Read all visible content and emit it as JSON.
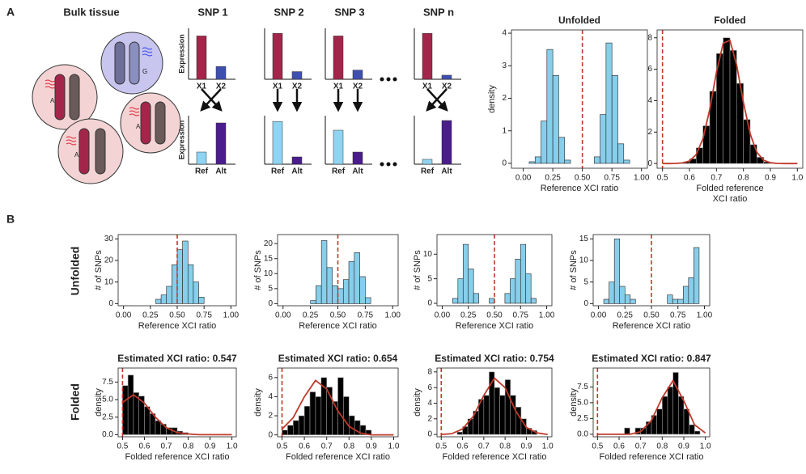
{
  "panel_a": {
    "label": "A"
  },
  "panel_b": {
    "label": "B",
    "row_labels": [
      "Unfolded",
      "Folded"
    ]
  },
  "bulk_tissue": {
    "title": "Bulk tissue",
    "alleles": [
      "A",
      "A",
      "A",
      "G"
    ]
  },
  "snp_panels": {
    "ylabel": "Expression",
    "ylim": [
      0,
      100
    ],
    "top_colors": [
      "#a3264a",
      "#3f4fb0"
    ],
    "bottom_colors": [
      "#8fd4f2",
      "#4a1c8c"
    ],
    "panels": [
      {
        "title": "SNP 1",
        "top": {
          "categories": [
            "X1",
            "X2"
          ],
          "values": [
            85,
            25
          ]
        },
        "bottom": {
          "categories": [
            "Ref",
            "Alt"
          ],
          "values": [
            25,
            85
          ]
        }
      },
      {
        "title": "SNP 2",
        "top": {
          "categories": [
            "X1",
            "X2"
          ],
          "values": [
            90,
            15
          ]
        },
        "bottom": {
          "categories": [
            "Ref",
            "Alt"
          ],
          "values": [
            88,
            15
          ]
        }
      },
      {
        "title": "SNP 3",
        "top": {
          "categories": [
            "X1",
            "X2"
          ],
          "values": [
            85,
            18
          ]
        },
        "bottom": {
          "categories": [
            "Ref",
            "Alt"
          ],
          "values": [
            70,
            25
          ]
        }
      },
      {
        "title": "SNP n",
        "top": {
          "categories": [
            "X1",
            "X2"
          ],
          "values": [
            90,
            8
          ]
        },
        "bottom": {
          "categories": [
            "Ref",
            "Alt"
          ],
          "values": [
            10,
            90
          ]
        }
      }
    ]
  },
  "chart_data": [
    {
      "type": "histogram",
      "title": "Unfolded",
      "xlabel": "Reference XCI ratio",
      "ylabel": "density",
      "bins": [
        0,
        0.05,
        0.1,
        0.15,
        0.2,
        0.25,
        0.3,
        0.35,
        0.4,
        0.45,
        0.5,
        0.55,
        0.6,
        0.65,
        0.7,
        0.75,
        0.8,
        0.85,
        0.9,
        0.95,
        1
      ],
      "counts": [
        0,
        0.05,
        0.2,
        1.3,
        3.5,
        2.7,
        0.8,
        0.1,
        0,
        0,
        0,
        0,
        0.2,
        1.5,
        3.7,
        2.7,
        0.6,
        0.1,
        0,
        0
      ],
      "color": "#87ceeb",
      "edgecolor": "#222",
      "reference_line": 0.5,
      "reference_color": "#c0392b",
      "xlim": [
        -0.1,
        1.05
      ],
      "ylim": [
        -0.15,
        4.1
      ],
      "xticks": [
        {
          "value": 0,
          "label": "0.00"
        },
        0.25,
        {
          "value": 0.5,
          "label": "0.50"
        },
        0.75,
        {
          "value": 1,
          "label": "1.00"
        }
      ],
      "yticks": [
        0,
        1,
        2,
        3,
        4
      ]
    },
    {
      "type": "histogram",
      "title": "Folded",
      "xlabel": [
        "Folded reference",
        "XCI ratio"
      ],
      "bins": [
        0.5,
        0.525,
        0.55,
        0.575,
        0.6,
        0.625,
        0.65,
        0.675,
        0.7,
        0.725,
        0.75,
        0.775,
        0.8,
        0.825,
        0.85,
        0.875,
        0.9,
        0.925,
        0.95,
        0.975,
        1
      ],
      "counts": [
        0,
        0,
        0,
        0.1,
        0.3,
        1.0,
        2.4,
        4.6,
        7.0,
        8.0,
        7.2,
        5.1,
        2.8,
        1.2,
        0.4,
        0.1,
        0,
        0,
        0,
        0
      ],
      "color": "#000",
      "edgecolor": "#999",
      "reference_line": 0.5,
      "reference_color": "#c0392b",
      "curve": {
        "x": [
          0.5,
          0.525,
          0.55,
          0.575,
          0.6,
          0.625,
          0.65,
          0.675,
          0.7,
          0.725,
          0.75,
          0.775,
          0.8,
          0.825,
          0.85,
          0.875,
          0.9,
          0.925,
          0.95,
          0.975,
          1
        ],
        "values": [
          0,
          0,
          0.01,
          0.04,
          0.16,
          0.57,
          1.58,
          3.43,
          5.81,
          7.65,
          7.84,
          6.26,
          3.89,
          1.89,
          0.71,
          0.21,
          0.05,
          0.01,
          0,
          0,
          0
        ],
        "color": "#c0392b"
      },
      "xlim": [
        0.48,
        1.02
      ],
      "ylim": [
        -0.3,
        8.5
      ],
      "xticks": [
        0.5,
        0.6,
        0.7,
        0.8,
        0.9,
        {
          "value": 1,
          "label": "1.0"
        }
      ],
      "yticks": [
        0,
        2,
        4,
        6,
        8
      ]
    },
    {
      "type": "histogram",
      "xlabel": "Reference XCI ratio",
      "ylabel": "# of SNPs",
      "bins": [
        0,
        0.05,
        0.1,
        0.15,
        0.2,
        0.25,
        0.3,
        0.35,
        0.4,
        0.45,
        0.5,
        0.55,
        0.6,
        0.65,
        0.7,
        0.75,
        0.8,
        0.85,
        0.9,
        0.95,
        1
      ],
      "counts": [
        0,
        0,
        0,
        0,
        0,
        0,
        2,
        4,
        8,
        18,
        25,
        29,
        18,
        10,
        3,
        0,
        0,
        0,
        0,
        0
      ],
      "color": "#87ceeb",
      "edgecolor": "#222",
      "reference_line": 0.5,
      "reference_color": "#c0392b",
      "xlim": [
        -0.05,
        1.05
      ],
      "ylim": [
        -1,
        32
      ],
      "xticks": [
        {
          "value": 0,
          "label": "0.00"
        },
        0.25,
        {
          "value": 0.5,
          "label": "0.50"
        },
        0.75,
        {
          "value": 1,
          "label": "1.00"
        }
      ],
      "yticks": [
        0,
        10,
        20,
        30
      ]
    },
    {
      "type": "histogram",
      "xlabel": "Reference XCI ratio",
      "ylabel": "# of SNPs",
      "bins": [
        0,
        0.05,
        0.1,
        0.15,
        0.2,
        0.25,
        0.3,
        0.35,
        0.4,
        0.45,
        0.5,
        0.55,
        0.6,
        0.65,
        0.7,
        0.75,
        0.8,
        0.85,
        0.9,
        0.95,
        1
      ],
      "counts": [
        0,
        0,
        0,
        0,
        0,
        1,
        6,
        21,
        12,
        6,
        5,
        8,
        14,
        17,
        9,
        2,
        0,
        0,
        0,
        0
      ],
      "color": "#87ceeb",
      "edgecolor": "#222",
      "reference_line": 0.5,
      "reference_color": "#c0392b",
      "xlim": [
        -0.05,
        1.05
      ],
      "ylim": [
        -0.7,
        23
      ],
      "xticks": [
        {
          "value": 0,
          "label": "0.00"
        },
        0.25,
        {
          "value": 0.5,
          "label": "0.50"
        },
        0.75,
        {
          "value": 1,
          "label": "1.00"
        }
      ],
      "yticks": [
        0,
        5,
        10,
        15,
        20
      ]
    },
    {
      "type": "histogram",
      "xlabel": "Reference XCI ratio",
      "ylabel": "# of SNPs",
      "bins": [
        0,
        0.05,
        0.1,
        0.15,
        0.2,
        0.25,
        0.3,
        0.35,
        0.4,
        0.45,
        0.5,
        0.55,
        0.6,
        0.65,
        0.7,
        0.75,
        0.8,
        0.85,
        0.9,
        0.95,
        1
      ],
      "counts": [
        0,
        0,
        1,
        5,
        12,
        7,
        2,
        0,
        0,
        1,
        0,
        0,
        2,
        5,
        9,
        12,
        6,
        1,
        0,
        0
      ],
      "color": "#87ceeb",
      "edgecolor": "#222",
      "reference_line": 0.5,
      "reference_color": "#c0392b",
      "xlim": [
        -0.05,
        1.05
      ],
      "ylim": [
        -0.5,
        14
      ],
      "xticks": [
        {
          "value": 0,
          "label": "0.00"
        },
        0.25,
        {
          "value": 0.5,
          "label": "0.50"
        },
        0.75,
        {
          "value": 1,
          "label": "1.00"
        }
      ],
      "yticks": [
        0,
        5,
        10
      ]
    },
    {
      "type": "histogram",
      "xlabel": "Reference XCI ratio",
      "ylabel": "# of SNPs",
      "bins": [
        0,
        0.05,
        0.1,
        0.15,
        0.2,
        0.25,
        0.3,
        0.35,
        0.4,
        0.45,
        0.5,
        0.55,
        0.6,
        0.65,
        0.7,
        0.75,
        0.8,
        0.85,
        0.9,
        0.95,
        1
      ],
      "counts": [
        0,
        1,
        5,
        15,
        4,
        2,
        1,
        0,
        0,
        0,
        0,
        0,
        0,
        2,
        1,
        1,
        4,
        6,
        13,
        0
      ],
      "color": "#87ceeb",
      "edgecolor": "#222",
      "reference_line": 0.5,
      "reference_color": "#c0392b",
      "xlim": [
        -0.05,
        1.05
      ],
      "ylim": [
        -0.5,
        16
      ],
      "xticks": [
        {
          "value": 0,
          "label": "0.00"
        },
        0.25,
        {
          "value": 0.5,
          "label": "0.50"
        },
        0.75,
        {
          "value": 1,
          "label": "1.00"
        }
      ],
      "yticks": [
        0,
        5,
        10,
        15
      ]
    },
    {
      "type": "histogram",
      "title": "Estimated XCI ratio: 0.547",
      "xlabel": "Folded reference XCI ratio",
      "ylabel": "density",
      "bins": [
        0.5,
        0.525,
        0.55,
        0.575,
        0.6,
        0.625,
        0.65,
        0.675,
        0.7,
        0.725,
        0.75,
        0.775,
        0.8,
        0.825,
        0.85,
        0.875,
        0.9,
        0.925,
        0.95,
        0.975,
        1
      ],
      "counts": [
        7,
        8.5,
        6,
        5.5,
        4,
        3,
        2,
        1.5,
        1,
        1,
        0.5,
        0.3,
        0,
        0,
        0,
        0,
        0,
        0,
        0,
        0
      ],
      "color": "#000",
      "edgecolor": "#999",
      "reference_line": 0.5,
      "reference_color": "#c0392b",
      "curve": {
        "x": [
          0.5,
          0.55,
          0.6,
          0.65,
          0.7,
          0.75,
          0.8,
          0.85,
          0.9,
          0.95,
          1
        ],
        "values": [
          4.6,
          5.7,
          4.5,
          2.5,
          1.0,
          0.3,
          0.1,
          0,
          0,
          0,
          0
        ],
        "color": "#c0392b"
      },
      "xlim": [
        0.48,
        1.02
      ],
      "ylim": [
        -0.3,
        9.5
      ],
      "xticks": [
        0.5,
        0.6,
        0.7,
        0.8,
        0.9,
        {
          "value": 1,
          "label": "1.0"
        }
      ],
      "yticks": [
        {
          "value": 0,
          "label": "0.0"
        },
        2.5,
        {
          "value": 5,
          "label": "5.0"
        },
        7.5
      ]
    },
    {
      "type": "histogram",
      "title": "Estimated XCI ratio: 0.654",
      "xlabel": "Folded reference XCI ratio",
      "ylabel": "density",
      "bins": [
        0.5,
        0.525,
        0.55,
        0.575,
        0.6,
        0.625,
        0.65,
        0.675,
        0.7,
        0.725,
        0.75,
        0.775,
        0.8,
        0.825,
        0.85,
        0.875,
        0.9,
        0.925,
        0.95,
        0.975,
        1
      ],
      "counts": [
        0.5,
        1,
        1.5,
        2,
        3,
        4.5,
        4,
        6,
        5,
        3.5,
        6,
        4,
        2,
        1.5,
        1,
        0.5,
        0,
        0,
        0,
        0
      ],
      "color": "#000",
      "edgecolor": "#999",
      "reference_line": 0.5,
      "reference_color": "#c0392b",
      "curve": {
        "x": [
          0.5,
          0.55,
          0.6,
          0.65,
          0.7,
          0.75,
          0.8,
          0.85,
          0.9,
          0.95,
          1
        ],
        "values": [
          0.6,
          1.8,
          4.0,
          5.7,
          4.8,
          2.5,
          0.9,
          0.2,
          0,
          0,
          0
        ],
        "color": "#c0392b"
      },
      "xlim": [
        0.48,
        1.02
      ],
      "ylim": [
        -0.2,
        7
      ],
      "xticks": [
        0.5,
        0.6,
        0.7,
        0.8,
        0.9,
        {
          "value": 1,
          "label": "1.0"
        }
      ],
      "yticks": [
        0,
        2,
        4,
        6
      ]
    },
    {
      "type": "histogram",
      "title": "Estimated XCI ratio: 0.754",
      "xlabel": "Folded reference XCI ratio",
      "ylabel": "density",
      "bins": [
        0.5,
        0.525,
        0.55,
        0.575,
        0.6,
        0.625,
        0.65,
        0.675,
        0.7,
        0.725,
        0.75,
        0.775,
        0.8,
        0.825,
        0.85,
        0.875,
        0.9,
        0.925,
        0.95,
        0.975,
        1
      ],
      "counts": [
        0,
        0,
        0,
        0.3,
        1,
        2,
        3,
        4.5,
        5,
        8,
        6,
        5,
        7,
        5,
        3.5,
        2,
        0.8,
        0.5,
        0,
        0
      ],
      "color": "#000",
      "edgecolor": "#999",
      "reference_line": 0.5,
      "reference_color": "#c0392b",
      "curve": {
        "x": [
          0.5,
          0.55,
          0.6,
          0.65,
          0.7,
          0.75,
          0.8,
          0.85,
          0.9,
          0.95,
          1
        ],
        "values": [
          0,
          0.1,
          0.7,
          2.3,
          5.0,
          7.2,
          6.0,
          3.0,
          0.9,
          0.2,
          0
        ],
        "color": "#c0392b"
      },
      "xlim": [
        0.48,
        1.02
      ],
      "ylim": [
        -0.3,
        8.5
      ],
      "xticks": [
        0.5,
        0.6,
        0.7,
        0.8,
        0.9,
        {
          "value": 1,
          "label": "1.0"
        }
      ],
      "yticks": [
        0,
        2,
        4,
        6,
        8
      ]
    },
    {
      "type": "histogram",
      "title": "Estimated XCI ratio: 0.847",
      "xlabel": "Folded reference XCI ratio",
      "ylabel": "density",
      "bins": [
        0.5,
        0.525,
        0.55,
        0.575,
        0.6,
        0.625,
        0.65,
        0.675,
        0.7,
        0.725,
        0.75,
        0.775,
        0.8,
        0.825,
        0.85,
        0.875,
        0.9,
        0.925,
        0.95,
        0.975,
        1
      ],
      "counts": [
        0,
        0,
        0,
        0,
        0,
        1,
        0,
        1,
        1,
        2,
        3,
        4,
        6,
        7.5,
        9.8,
        6,
        4,
        1.5,
        0.5,
        0
      ],
      "color": "#000",
      "edgecolor": "#999",
      "reference_line": 0.5,
      "reference_color": "#c0392b",
      "curve": {
        "x": [
          0.5,
          0.55,
          0.6,
          0.65,
          0.7,
          0.75,
          0.8,
          0.85,
          0.9,
          0.95,
          1
        ],
        "values": [
          0,
          0,
          0,
          0,
          0.4,
          2.2,
          5.8,
          8.5,
          5.3,
          1.5,
          0.2
        ],
        "color": "#c0392b"
      },
      "xlim": [
        0.48,
        1.02
      ],
      "ylim": [
        -0.4,
        10.5
      ],
      "xticks": [
        0.5,
        0.6,
        0.7,
        0.8,
        0.9,
        {
          "value": 1,
          "label": "1.0"
        }
      ],
      "yticks": [
        {
          "value": 0,
          "label": "0.0"
        },
        2.5,
        {
          "value": 5,
          "label": "5.0"
        },
        7.5
      ]
    }
  ]
}
